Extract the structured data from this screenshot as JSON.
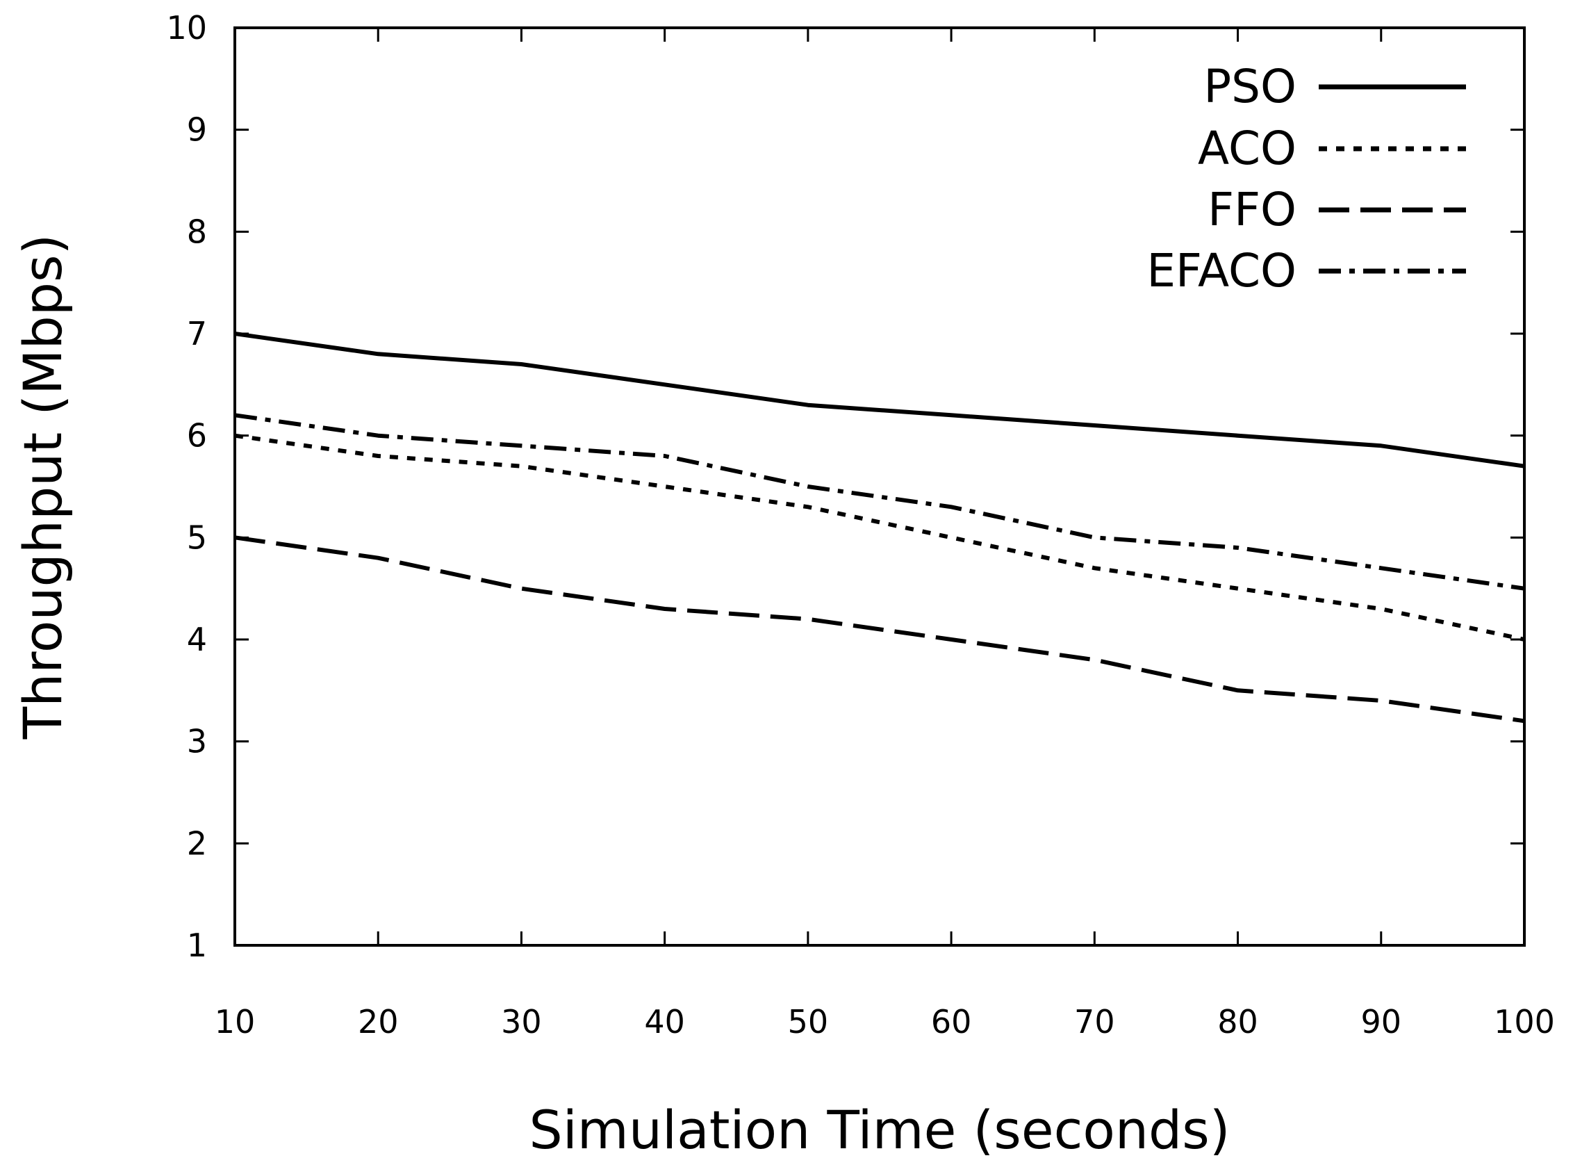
{
  "chart_data": {
    "type": "line",
    "title": "",
    "xlabel": "Simulation Time (seconds)",
    "ylabel": "Throughput (Mbps)",
    "xlim": [
      10,
      100
    ],
    "ylim": [
      1,
      10
    ],
    "x": [
      10,
      20,
      30,
      40,
      50,
      60,
      70,
      80,
      90,
      100
    ],
    "xticks": [
      "10",
      "20",
      "30",
      "40",
      "50",
      "60",
      "70",
      "80",
      "90",
      "100"
    ],
    "yticks": [
      "1",
      "2",
      "3",
      "4",
      "5",
      "6",
      "7",
      "8",
      "9",
      "10"
    ],
    "grid": false,
    "legend_position": "top-right",
    "series": [
      {
        "name": "PSO",
        "style": "solid",
        "values": [
          7.0,
          6.8,
          6.7,
          6.5,
          6.3,
          6.2,
          6.1,
          6.0,
          5.9,
          5.7
        ]
      },
      {
        "name": "ACO",
        "style": "dotted",
        "values": [
          6.0,
          5.8,
          5.7,
          5.5,
          5.3,
          5.0,
          4.7,
          4.5,
          4.3,
          4.0
        ]
      },
      {
        "name": "FFO",
        "style": "dashed",
        "values": [
          5.0,
          4.8,
          4.5,
          4.3,
          4.2,
          4.0,
          3.8,
          3.5,
          3.4,
          3.2
        ]
      },
      {
        "name": "EFACO",
        "style": "dash-dot",
        "values": [
          6.2,
          6.0,
          5.9,
          5.8,
          5.5,
          5.3,
          5.0,
          4.9,
          4.7,
          4.5
        ]
      }
    ]
  }
}
